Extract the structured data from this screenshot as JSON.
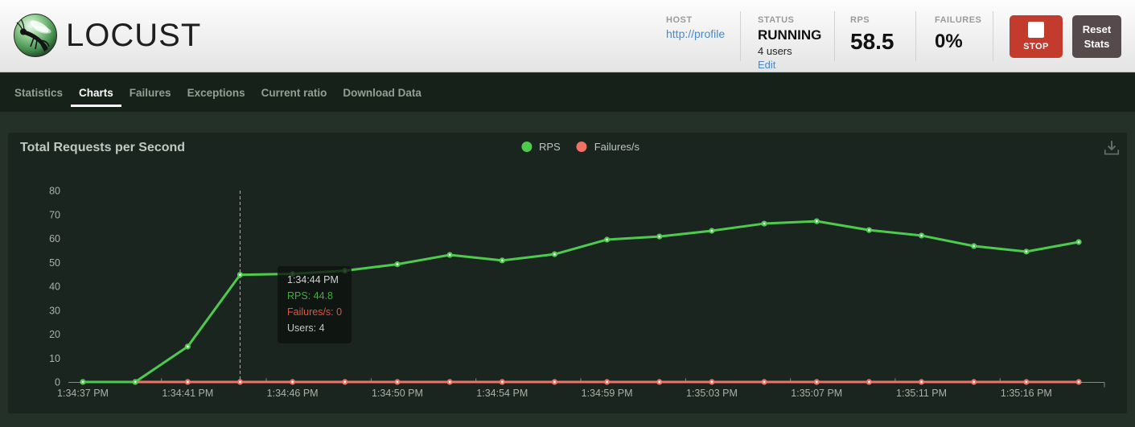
{
  "header": {
    "logo_text": "LOCUST",
    "sections": {
      "host": {
        "label": "HOST",
        "value": "http://profile"
      },
      "status": {
        "label": "STATUS",
        "value": "RUNNING",
        "users": "4 users",
        "edit": "Edit"
      },
      "rps": {
        "label": "RPS",
        "value": "58.5"
      },
      "failures": {
        "label": "FAILURES",
        "value": "0%"
      }
    },
    "buttons": {
      "stop": "STOP",
      "reset": "Reset Stats"
    }
  },
  "nav": {
    "tabs": [
      "Statistics",
      "Charts",
      "Failures",
      "Exceptions",
      "Current ratio",
      "Download Data"
    ],
    "active_tab": "Charts"
  },
  "chart": {
    "title": "Total Requests per Second"
  },
  "tooltip": {
    "time": "1:34:44 PM",
    "rps": "RPS: 44.8",
    "failures": "Failures/s: 0",
    "users": "Users: 4"
  },
  "chart_data": {
    "type": "line",
    "title": "Total Requests per Second",
    "x_labels": [
      "1:34:37 PM",
      "1:34:41 PM",
      "1:34:46 PM",
      "1:34:50 PM",
      "1:34:54 PM",
      "1:34:59 PM",
      "1:35:03 PM",
      "1:35:07 PM",
      "1:35:11 PM",
      "1:35:16 PM"
    ],
    "x_label_every_nth_point": 2,
    "num_points": 20,
    "series": [
      {
        "name": "RPS",
        "color": "#4ecb4e",
        "values": [
          0,
          0,
          14.8,
          44.8,
          45.2,
          46.5,
          49.2,
          53.1,
          50.8,
          53.4,
          59.5,
          60.8,
          63.2,
          66.2,
          67.2,
          63.5,
          61.2,
          56.8,
          54.5,
          58.5
        ]
      },
      {
        "name": "Failures/s",
        "color": "#ee7266",
        "values": [
          0,
          0,
          0,
          0,
          0,
          0,
          0,
          0,
          0,
          0,
          0,
          0,
          0,
          0,
          0,
          0,
          0,
          0,
          0,
          0
        ]
      }
    ],
    "ylim": [
      0,
      80
    ],
    "y_ticks": [
      0,
      10,
      20,
      30,
      40,
      50,
      60,
      70,
      80
    ],
    "grid": false,
    "legend_position": "top-center",
    "highlight": {
      "index": 3,
      "time": "1:34:44 PM",
      "rps": 44.8,
      "failures": 0,
      "users": 4
    }
  },
  "colors": {
    "rps_series": "#4ecb4e",
    "failures_series": "#ee7266",
    "stop_button": "#c23b2c",
    "reset_button": "#564a4c",
    "nav_bg": "#16211a",
    "card_bg": "#1a2520",
    "page_bg": "#233129"
  }
}
